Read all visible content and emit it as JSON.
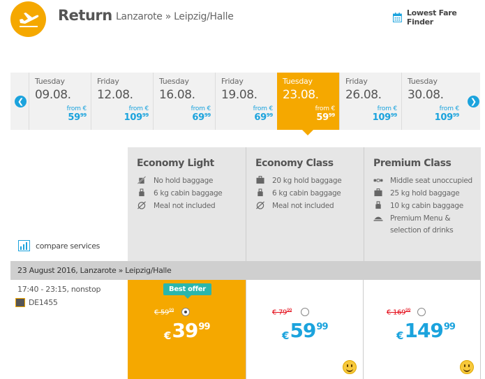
{
  "header": {
    "title": "Return",
    "route": "Lanzarote » Leipzig/Halle",
    "lowest_fare_finder": "Lowest Fare Finder"
  },
  "dates": [
    {
      "dow": "Tuesday",
      "date": "09.08.",
      "from": "from €",
      "price": "59",
      "cents": "99",
      "selected": false
    },
    {
      "dow": "Friday",
      "date": "12.08.",
      "from": "from €",
      "price": "109",
      "cents": "99",
      "selected": false
    },
    {
      "dow": "Tuesday",
      "date": "16.08.",
      "from": "from €",
      "price": "69",
      "cents": "99",
      "selected": false
    },
    {
      "dow": "Friday",
      "date": "19.08.",
      "from": "from €",
      "price": "69",
      "cents": "99",
      "selected": false
    },
    {
      "dow": "Tuesday",
      "date": "23.08.",
      "from": "from €",
      "price": "59",
      "cents": "99",
      "selected": true
    },
    {
      "dow": "Friday",
      "date": "26.08.",
      "from": "from €",
      "price": "109",
      "cents": "99",
      "selected": false
    },
    {
      "dow": "Tuesday",
      "date": "30.08.",
      "from": "from €",
      "price": "109",
      "cents": "99",
      "selected": false
    }
  ],
  "fares": [
    {
      "title": "Economy Light",
      "features": [
        {
          "icon": "no-baggage-icon",
          "text": "No hold baggage"
        },
        {
          "icon": "cabin-bag-icon",
          "text": "6 kg cabin baggage"
        },
        {
          "icon": "no-meal-icon",
          "text": "Meal not included"
        }
      ]
    },
    {
      "title": "Economy Class",
      "features": [
        {
          "icon": "suitcase-icon",
          "text": "20 kg hold baggage"
        },
        {
          "icon": "cabin-bag-icon",
          "text": "6 kg cabin baggage"
        },
        {
          "icon": "no-meal-icon",
          "text": "Meal not included"
        }
      ]
    },
    {
      "title": "Premium Class",
      "features": [
        {
          "icon": "seat-icon",
          "text": "Middle seat unoccupied"
        },
        {
          "icon": "suitcase-icon",
          "text": "25 kg hold baggage"
        },
        {
          "icon": "cabin-bag-icon",
          "text": "10 kg cabin baggage"
        },
        {
          "icon": "meal-icon",
          "text": "Premium Menu & selection of drinks"
        }
      ]
    }
  ],
  "compare_label": "compare services",
  "flight": {
    "bar": "23 August 2016, Lanzarote » Leipzig/Halle",
    "time": "17:40 - 23:15, nonstop",
    "number": "DE1455"
  },
  "prices": [
    {
      "badge": "Best offer",
      "old": "€ 59",
      "old_cents": "99",
      "currency": "€",
      "price": "39",
      "cents": "99",
      "selected": true
    },
    {
      "old": "€ 79",
      "old_cents": "99",
      "currency": "€",
      "price": "59",
      "cents": "99",
      "selected": false
    },
    {
      "old": "€ 169",
      "old_cents": "99",
      "currency": "€",
      "price": "149",
      "cents": "99",
      "selected": false
    }
  ],
  "colors": {
    "accent": "#f5a800",
    "blue": "#1ba3dd",
    "badge": "#2ab6ac",
    "strike": "#e30613"
  }
}
